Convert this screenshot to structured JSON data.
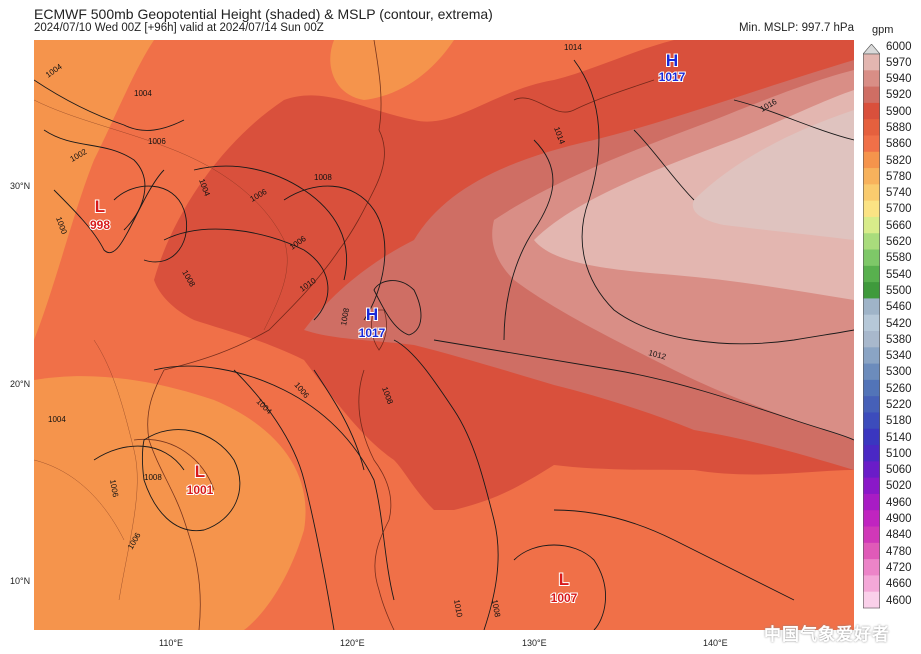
{
  "header": {
    "title": "ECMWF 500mb Geopotential Height (shaded) & MSLP (contour, extrema)",
    "subtitle": "2024/07/10 Wed 00Z [+96h] valid at 2024/07/14 Sun 00Z",
    "min_mslp": "Min. MSLP: 997.7 hPa",
    "units": "gpm"
  },
  "axes": {
    "lat_labels": [
      "30°N",
      "20°N",
      "10°N"
    ],
    "lon_labels": [
      "110°E",
      "120°E",
      "130°E",
      "140°E"
    ]
  },
  "colorbar": {
    "labels": [
      "6000",
      "5970",
      "5940",
      "5920",
      "5900",
      "5880",
      "5860",
      "5820",
      "5780",
      "5740",
      "5700",
      "5660",
      "5620",
      "5580",
      "5540",
      "5500",
      "5460",
      "5420",
      "5380",
      "5340",
      "5300",
      "5260",
      "5220",
      "5180",
      "5140",
      "5100",
      "5060",
      "5020",
      "4960",
      "4900",
      "4840",
      "4780",
      "4720",
      "4660",
      "4600"
    ],
    "colors": [
      "#d9d9d9",
      "#e3b6b0",
      "#d98e86",
      "#cf6e64",
      "#d9503c",
      "#e5603e",
      "#f07048",
      "#f5944c",
      "#f7b25c",
      "#f9cb6e",
      "#fbe384",
      "#d8ec8a",
      "#a9dc7c",
      "#7ec868",
      "#58b04e",
      "#3f9a3c",
      "#9fb4c8",
      "#b6c8d8",
      "#a8b8cc",
      "#8aa4c4",
      "#6c8cbc",
      "#5274b8",
      "#4660b8",
      "#3c4cbc",
      "#3a36c0",
      "#4a28c4",
      "#6a1cc8",
      "#8a18c8",
      "#a81cc4",
      "#c024c0",
      "#d038b8",
      "#e05ab8",
      "#ec84c8",
      "#f4a8d8",
      "#fad0ea"
    ]
  },
  "systems": [
    {
      "type": "H",
      "value": "1017",
      "name": "east-china-sea-high"
    },
    {
      "type": "L",
      "value": "998",
      "name": "sichuan-low"
    },
    {
      "type": "H",
      "value": "1017",
      "name": "taiwan-high"
    },
    {
      "type": "L",
      "value": "1001",
      "name": "indochina-low"
    },
    {
      "type": "L",
      "value": "1007",
      "name": "pacific-low"
    }
  ],
  "isobar_labels": [
    "1004",
    "1002",
    "1004",
    "1000",
    "1006",
    "1004",
    "1006",
    "1008",
    "1008",
    "1006",
    "1010",
    "1008",
    "1006",
    "1004",
    "1004",
    "1006",
    "1006",
    "1008",
    "1010",
    "1008",
    "1008",
    "1014",
    "1014",
    "1016",
    "1012"
  ],
  "watermark": "中国气象爱好者"
}
